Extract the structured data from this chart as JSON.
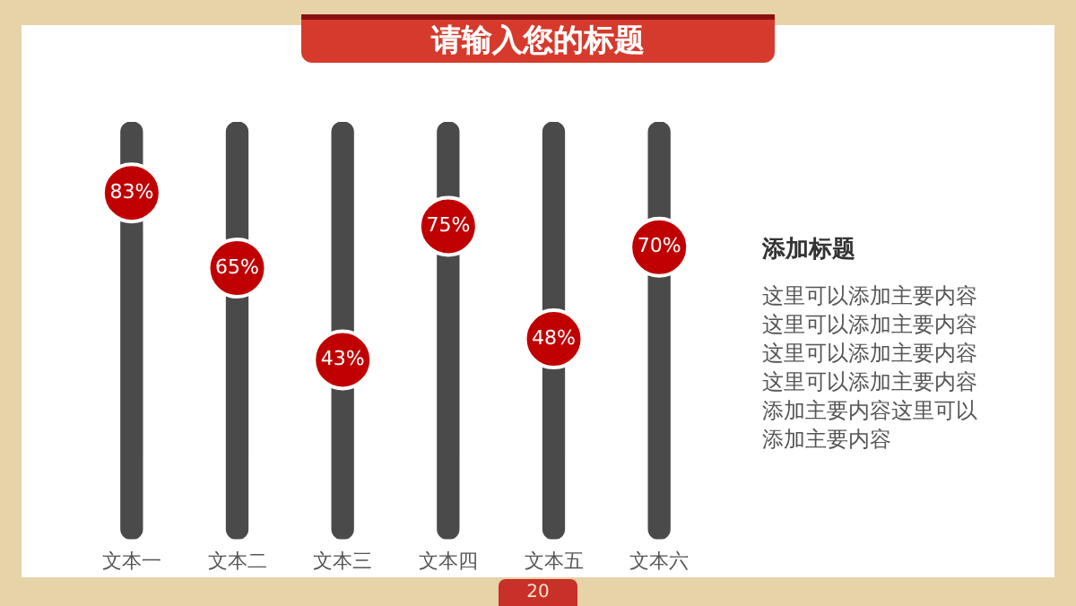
{
  "chart_data": {
    "type": "bar",
    "title": "请输入您的标题",
    "categories": [
      "文本一",
      "文本二",
      "文本三",
      "文本四",
      "文本五",
      "文本六"
    ],
    "series": [
      {
        "color": "#4a4a4a",
        "values": [
          100,
          100,
          100,
          100,
          100,
          100
        ]
      },
      {
        "type": "scatter",
        "color": "#c00000",
        "values": [
          83,
          65,
          43,
          75,
          48,
          70
        ],
        "value_labels": [
          "83%",
          "65%",
          "43%",
          "75%",
          "48%",
          "70%"
        ]
      }
    ],
    "marker": "circle",
    "ylim": [
      0,
      100
    ],
    "tick_labels": "x",
    "grid": false,
    "legend": false,
    "annotations": [
      "添加标题",
      "这里可以添加主要内容这里可以添加主要内容这里可以添加主要内容这里可以添加主要内容添加主要内容这里可以添加主要内容",
      "20"
    ]
  }
}
